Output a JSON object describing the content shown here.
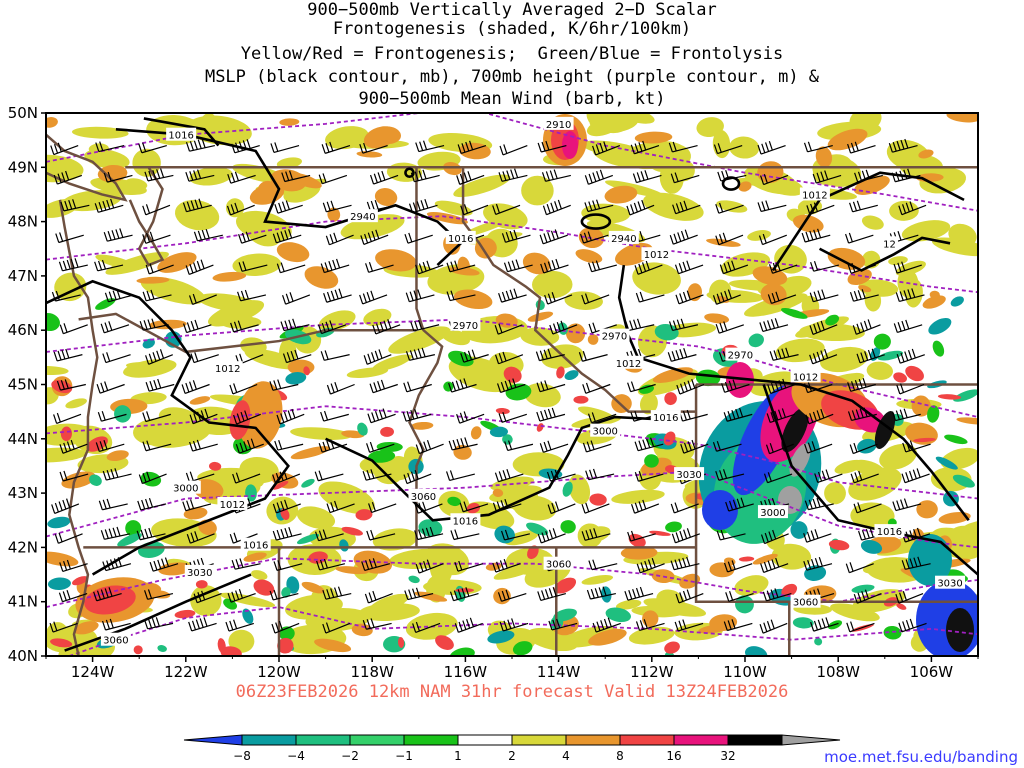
{
  "title": {
    "lines": [
      "900−500mb Vertically Averaged 2−D Scalar",
      "Frontogenesis (shaded, K/6hr/100km)",
      "Yellow/Red = Frontogenesis;  Green/Blue = Frontolysis",
      "MSLP (black contour, mb), 700mb height (purple contour, m) &",
      "900−500mb Mean Wind (barb, kt)"
    ]
  },
  "map": {
    "lat_range": [
      40,
      50
    ],
    "lon_range": [
      -125,
      -105
    ],
    "lat_labels": [
      "50N",
      "49N",
      "48N",
      "47N",
      "46N",
      "45N",
      "44N",
      "43N",
      "42N",
      "41N",
      "40N"
    ],
    "lon_labels": [
      "124W",
      "122W",
      "120W",
      "118W",
      "116W",
      "114W",
      "112W",
      "110W",
      "108W",
      "106W"
    ],
    "mslp_labels": [
      {
        "text": "1016",
        "lon": -122.1,
        "lat": 49.6
      },
      {
        "text": "1016",
        "lon": -116.1,
        "lat": 47.7
      },
      {
        "text": "1012",
        "lon": -121.1,
        "lat": 45.3
      },
      {
        "text": "1012",
        "lon": -121.0,
        "lat": 42.8
      },
      {
        "text": "1016",
        "lon": -120.5,
        "lat": 42.05
      },
      {
        "text": "1016",
        "lon": -116.0,
        "lat": 42.5
      },
      {
        "text": "1012",
        "lon": -112.5,
        "lat": 45.4
      },
      {
        "text": "1016",
        "lon": -111.7,
        "lat": 44.4
      },
      {
        "text": "1012",
        "lon": -108.7,
        "lat": 45.15
      },
      {
        "text": "1016",
        "lon": -106.9,
        "lat": 42.3
      },
      {
        "text": "1012",
        "lon": -108.5,
        "lat": 48.5
      },
      {
        "text": "1012",
        "lon": -111.9,
        "lat": 47.4
      },
      {
        "text": "12",
        "lon": -106.9,
        "lat": 47.6
      }
    ],
    "height_labels": [
      {
        "text": "2910",
        "lon": -114.0,
        "lat": 49.8
      },
      {
        "text": "2940",
        "lon": -118.2,
        "lat": 48.1
      },
      {
        "text": "2940",
        "lon": -112.6,
        "lat": 47.7
      },
      {
        "text": "2970",
        "lon": -116.0,
        "lat": 46.1
      },
      {
        "text": "2970",
        "lon": -112.8,
        "lat": 45.9
      },
      {
        "text": "2970",
        "lon": -110.1,
        "lat": 45.55
      },
      {
        "text": "3000",
        "lon": -113.0,
        "lat": 44.15
      },
      {
        "text": "3030",
        "lon": -111.2,
        "lat": 43.35
      },
      {
        "text": "3000",
        "lon": -109.4,
        "lat": 42.65
      },
      {
        "text": "3000",
        "lon": -122.0,
        "lat": 43.1
      },
      {
        "text": "3060",
        "lon": -116.9,
        "lat": 42.95
      },
      {
        "text": "3030",
        "lon": -121.7,
        "lat": 41.55
      },
      {
        "text": "3060",
        "lon": -114.0,
        "lat": 41.7
      },
      {
        "text": "3060",
        "lon": -108.7,
        "lat": 41.0
      },
      {
        "text": "3030",
        "lon": -105.6,
        "lat": 41.35
      },
      {
        "text": "3060",
        "lon": -123.5,
        "lat": 40.3
      }
    ],
    "colors": {
      "mslp": "#000000",
      "height": "#a020c0",
      "border": "#6e5040",
      "barb": "#000000"
    }
  },
  "colorbar": {
    "labels": [
      "−8",
      "−4",
      "−2",
      "−1",
      "1",
      "2",
      "4",
      "8",
      "16",
      "32"
    ],
    "colors": [
      "#1f3fe6",
      "#0a9ca0",
      "#1fbf7f",
      "#34d06a",
      "#19c219",
      "#ffffff",
      "#d8d83a",
      "#e8962e",
      "#f04444",
      "#e8137c",
      "#000000",
      "#a0a0a0"
    ]
  },
  "forecast": "06Z23FEB2026 12km NAM 31hr forecast Valid 13Z24FEB2026",
  "credit": "moe.met.fsu.edu/banding"
}
